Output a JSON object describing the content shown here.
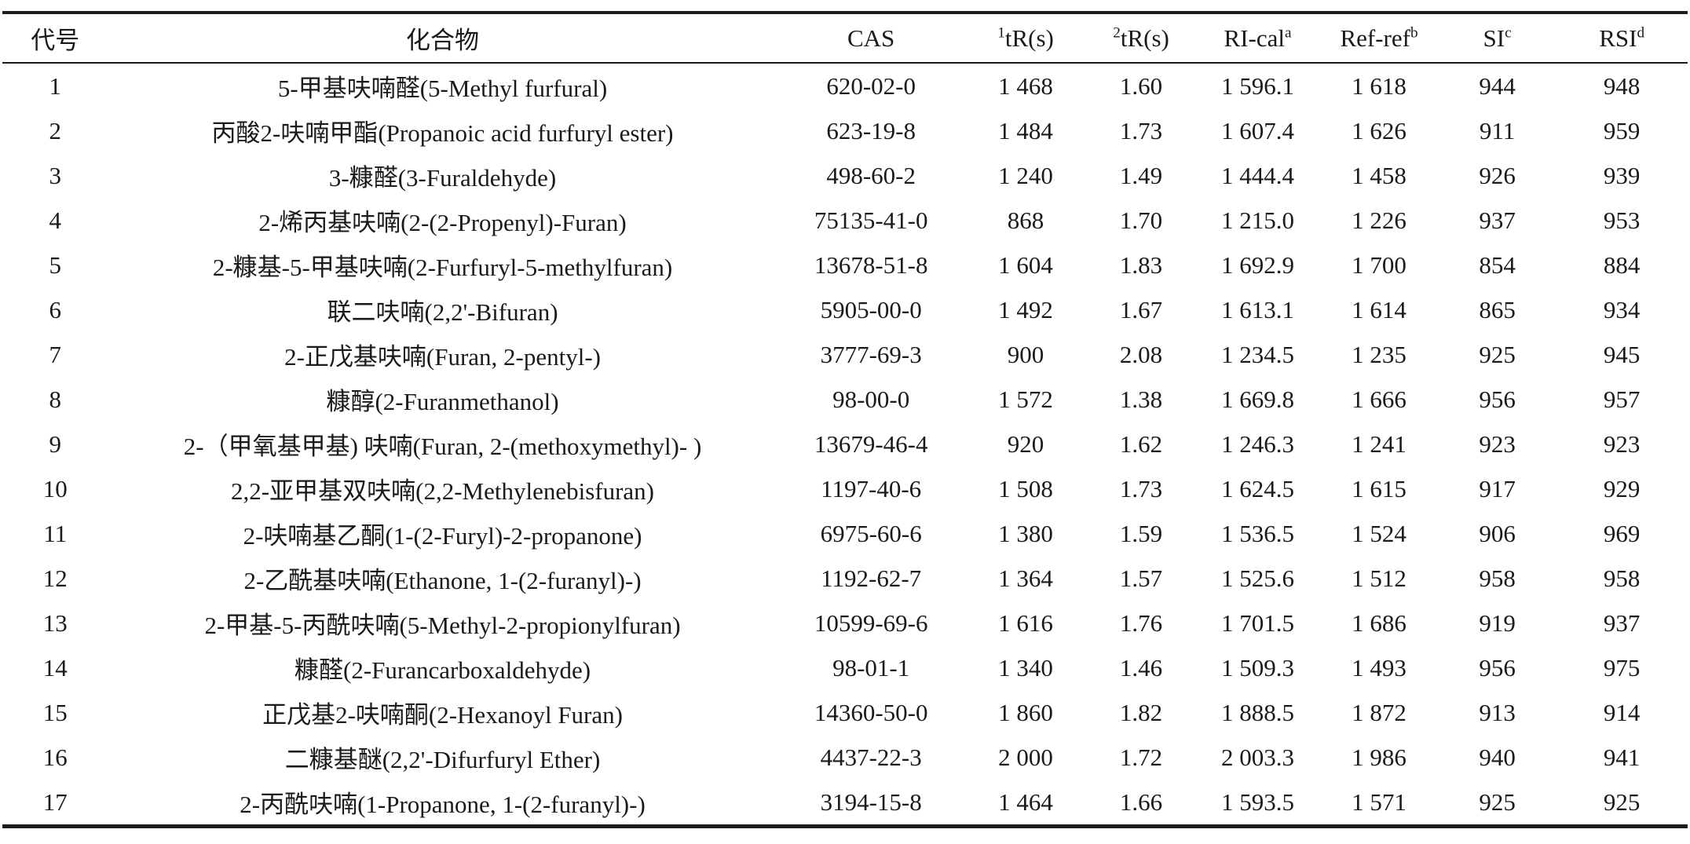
{
  "table": {
    "columns": [
      {
        "key": "id",
        "label": "代号"
      },
      {
        "key": "compound",
        "label": "化合物"
      },
      {
        "key": "cas",
        "label": "CAS"
      },
      {
        "key": "tr1",
        "sup_pre": "1",
        "label": "tR(s)"
      },
      {
        "key": "tr2",
        "sup_pre": "2",
        "label": "tR(s)"
      },
      {
        "key": "ri_cal",
        "label": "RI-cal",
        "sup": "a"
      },
      {
        "key": "ref_ref",
        "label": "Ref-ref",
        "sup": "b"
      },
      {
        "key": "si",
        "label": "SI",
        "sup": "c"
      },
      {
        "key": "rsi",
        "label": "RSI",
        "sup": "d"
      }
    ],
    "rows": [
      [
        "1",
        "5-甲基呋喃醛(5-Methyl furfural)",
        "620-02-0",
        "1 468",
        "1.60",
        "1 596.1",
        "1 618",
        "944",
        "948"
      ],
      [
        "2",
        "丙酸2-呋喃甲酯(Propanoic acid furfuryl ester)",
        "623-19-8",
        "1 484",
        "1.73",
        "1 607.4",
        "1 626",
        "911",
        "959"
      ],
      [
        "3",
        "3-糠醛(3-Furaldehyde)",
        "498-60-2",
        "1 240",
        "1.49",
        "1 444.4",
        "1 458",
        "926",
        "939"
      ],
      [
        "4",
        "2-烯丙基呋喃(2-(2-Propenyl)-Furan)",
        "75135-41-0",
        "868",
        "1.70",
        "1 215.0",
        "1 226",
        "937",
        "953"
      ],
      [
        "5",
        "2-糠基-5-甲基呋喃(2-Furfuryl-5-methylfuran)",
        "13678-51-8",
        "1 604",
        "1.83",
        "1 692.9",
        "1 700",
        "854",
        "884"
      ],
      [
        "6",
        "联二呋喃(2,2'-Bifuran)",
        "5905-00-0",
        "1 492",
        "1.67",
        "1 613.1",
        "1 614",
        "865",
        "934"
      ],
      [
        "7",
        "2-正戊基呋喃(Furan, 2-pentyl-)",
        "3777-69-3",
        "900",
        "2.08",
        "1 234.5",
        "1 235",
        "925",
        "945"
      ],
      [
        "8",
        "糠醇(2-Furanmethanol)",
        "98-00-0",
        "1 572",
        "1.38",
        "1 669.8",
        "1 666",
        "956",
        "957"
      ],
      [
        "9",
        "2-（甲氧基甲基) 呋喃(Furan, 2-(methoxymethyl)- )",
        "13679-46-4",
        "920",
        "1.62",
        "1 246.3",
        "1 241",
        "923",
        "923"
      ],
      [
        "10",
        "2,2-亚甲基双呋喃(2,2-Methylenebisfuran)",
        "1197-40-6",
        "1 508",
        "1.73",
        "1 624.5",
        "1 615",
        "917",
        "929"
      ],
      [
        "11",
        "2-呋喃基乙酮(1-(2-Furyl)-2-propanone)",
        "6975-60-6",
        "1 380",
        "1.59",
        "1 536.5",
        "1 524",
        "906",
        "969"
      ],
      [
        "12",
        "2-乙酰基呋喃(Ethanone, 1-(2-furanyl)-)",
        "1192-62-7",
        "1 364",
        "1.57",
        "1 525.6",
        "1 512",
        "958",
        "958"
      ],
      [
        "13",
        "2-甲基-5-丙酰呋喃(5-Methyl-2-propionylfuran)",
        "10599-69-6",
        "1 616",
        "1.76",
        "1 701.5",
        "1 686",
        "919",
        "937"
      ],
      [
        "14",
        "糠醛(2-Furancarboxaldehyde)",
        "98-01-1",
        "1 340",
        "1.46",
        "1 509.3",
        "1 493",
        "956",
        "975"
      ],
      [
        "15",
        "正戊基2-呋喃酮(2-Hexanoyl Furan)",
        "14360-50-0",
        "1 860",
        "1.82",
        "1 888.5",
        "1 872",
        "913",
        "914"
      ],
      [
        "16",
        "二糠基醚(2,2'-Difurfuryl Ether)",
        "4437-22-3",
        "2 000",
        "1.72",
        "2 003.3",
        "1 986",
        "940",
        "941"
      ],
      [
        "17",
        "2-丙酰呋喃(1-Propanone, 1-(2-furanyl)-)",
        "3194-15-8",
        "1 464",
        "1.66",
        "1 593.5",
        "1 571",
        "925",
        "925"
      ]
    ]
  },
  "colors": {
    "text": "#1a1a1a",
    "rule": "#1c1c1c",
    "background": "#ffffff"
  }
}
